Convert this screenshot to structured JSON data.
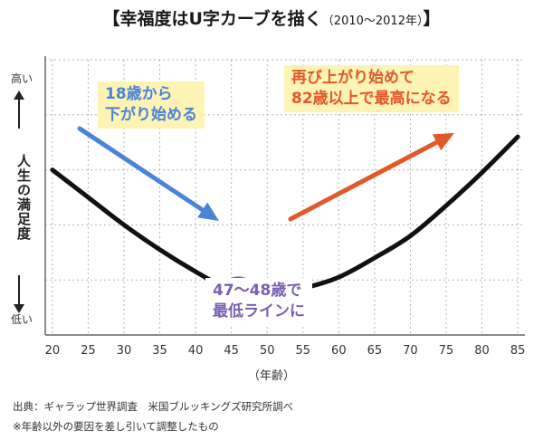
{
  "title": {
    "main": "【幸福度はU字カーブを描く",
    "sub": "（2010〜2012年）",
    "close": "】"
  },
  "y_axis": {
    "label": "人生の満足度",
    "high": "高い",
    "low": "低い"
  },
  "x_axis": {
    "label": "（年齢）",
    "ticks": [
      20,
      25,
      30,
      35,
      40,
      45,
      50,
      55,
      60,
      65,
      70,
      75,
      80,
      85
    ]
  },
  "annotations": {
    "decline": [
      "18歳から",
      "下がり始める"
    ],
    "bottom": [
      "47〜48歳で",
      "最低ラインに"
    ],
    "rise": [
      "再び上がり始めて",
      "82歳以上で最高になる"
    ]
  },
  "source": "出典：ギャラップ世界調査　米国ブルッキングズ研究所調べ",
  "note": "※年齢以外の要因を差し引いて調整したもの",
  "colors": {
    "curve": "#111111",
    "decline_arrow": "#4a84d6",
    "rise_arrow": "#e2582a",
    "minimum_circle": "#7a5fb5",
    "callout_background": "#fdf3b5"
  },
  "chart_data": {
    "type": "line",
    "title": "幸福度はU字カーブを描く（2010〜2012年）",
    "xlabel": "（年齢）",
    "ylabel": "人生の満足度",
    "xlim": [
      19,
      86
    ],
    "y_scale": "relative (低い → 高い, no numeric ticks)",
    "grid": true,
    "series": [
      {
        "x": [
          20,
          25,
          30,
          35,
          40,
          45,
          48,
          50,
          55,
          60,
          65,
          70,
          75,
          80,
          85
        ],
        "values": [
          0.6,
          0.5,
          0.4,
          0.31,
          0.23,
          0.16,
          0.15,
          0.15,
          0.17,
          0.21,
          0.28,
          0.36,
          0.47,
          0.59,
          0.72
        ]
      }
    ],
    "minimum_age": 48
  }
}
